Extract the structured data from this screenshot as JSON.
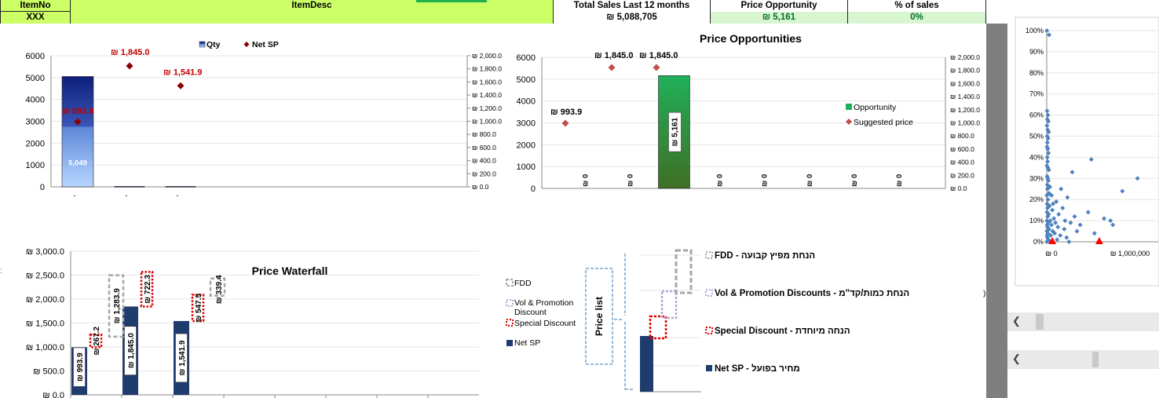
{
  "header": {
    "item_no_label": "ItemNo",
    "item_no_value": "XXX",
    "item_desc_label": "ItemDesc",
    "total_sales_label": "Total Sales Last  12 months",
    "total_sales_value": "₪ 5,088,705",
    "price_opp_label": "Price Opportunity",
    "price_opp_value": "₪ 5,161",
    "pct_sales_label": "% of sales",
    "pct_sales_value": "0%"
  },
  "chart_data": [
    {
      "id": "qty_netsp",
      "type": "bar",
      "legend": [
        "Qty",
        "Net SP"
      ],
      "y_ticks": [
        "6000",
        "5000",
        "4000",
        "3000",
        "2000",
        "1000",
        "0"
      ],
      "y2_ticks": [
        "₪ 2,000.0",
        "₪ 1,800.0",
        "₪ 1,600.0",
        "₪ 1,400.0",
        "₪ 1,200.0",
        "₪ 1,000.0",
        "₪ 800.0",
        "₪ 600.0",
        "₪ 400.0",
        "₪ 200.0",
        "₪ 0.0"
      ],
      "ylim": [
        0,
        6000
      ],
      "y2lim": [
        0,
        2000
      ],
      "qty": [
        5049,
        20,
        20
      ],
      "net_sp": [
        993.9,
        1845.0,
        1541.9
      ],
      "bar_label": "5,049",
      "point_labels": [
        "₪ 993.9",
        "₪ 1,845.0",
        "₪ 1,541.9"
      ]
    },
    {
      "id": "price_opportunities",
      "type": "bar",
      "title": "Price Opportunities",
      "legend": [
        "Opportunity",
        "Suggested price"
      ],
      "y_ticks": [
        "6000",
        "5000",
        "4000",
        "3000",
        "2000",
        "1000",
        "0"
      ],
      "y2_ticks": [
        "₪ 2,000.0",
        "₪ 1,800.0",
        "₪ 1,600.0",
        "₪ 1,400.0",
        "₪ 1,200.0",
        "₪ 1,000.0",
        "₪ 800.0",
        "₪ 600.0",
        "₪ 400.0",
        "₪ 200.0",
        "₪ 0.0"
      ],
      "ylim": [
        0,
        6000
      ],
      "y2lim": [
        0,
        2000
      ],
      "opportunity": [
        0,
        0,
        5161,
        0,
        0,
        0,
        0,
        0
      ],
      "opportunity_labels": [
        "₪ 0",
        "₪ 0",
        "₪ 5,161",
        "₪ 0",
        "₪ 0",
        "₪ 0",
        "₪ 0",
        "₪ 0"
      ],
      "suggested_price": [
        993.9,
        1845.0,
        1845.0
      ],
      "suggested_labels": [
        "₪ 993.9",
        "₪ 1,845.0",
        "₪ 1,845.0"
      ]
    },
    {
      "id": "price_waterfall",
      "type": "bar",
      "title": "Price Waterfall",
      "y_ticks": [
        "₪ 3,000.0",
        "₪ 2,500.0",
        "₪ 2,000.0",
        "₪ 1,500.0",
        "₪ 1,000.0",
        "₪ 500.0",
        "₪ 0.0"
      ],
      "ylim": [
        0,
        3000
      ],
      "legend": [
        "FDD",
        "Vol & Promotion Discount",
        "Special Discount",
        "Net SP"
      ],
      "net_sp": [
        993.9,
        1845.0,
        1541.9
      ],
      "net_sp_labels": [
        "₪ 993.9",
        "₪ 1,845.0",
        "₪ 1,541.9"
      ],
      "special_discount": [
        267.2,
        722.3,
        547.5
      ],
      "special_labels": [
        "₪ 267.2",
        "₪ 722.3",
        "₪ 547.5"
      ],
      "fdd": [
        1283.9,
        339.4
      ],
      "fdd_labels": [
        "₪ 1,283.9",
        "₪ 339.4"
      ]
    },
    {
      "id": "scatter",
      "type": "scatter",
      "y_ticks": [
        "100%",
        "90%",
        "80%",
        "70%",
        "60%",
        "50%",
        "40%",
        "30%",
        "20%",
        "10%",
        "0%"
      ],
      "x_ticks": [
        "₪ 0",
        "₪ 1,000,000"
      ],
      "xlim": [
        0,
        1400000
      ],
      "ylim": [
        0,
        1
      ],
      "points": [
        [
          2000,
          1.0
        ],
        [
          30000,
          0.98
        ],
        [
          5000,
          0.62
        ],
        [
          15000,
          0.6
        ],
        [
          8000,
          0.58
        ],
        [
          20000,
          0.57
        ],
        [
          3000,
          0.55
        ],
        [
          12000,
          0.53
        ],
        [
          25000,
          0.52
        ],
        [
          6000,
          0.5
        ],
        [
          18000,
          0.49
        ],
        [
          9000,
          0.47
        ],
        [
          4000,
          0.45
        ],
        [
          14000,
          0.44
        ],
        [
          22000,
          0.42
        ],
        [
          7000,
          0.4
        ],
        [
          560000,
          0.39
        ],
        [
          11000,
          0.38
        ],
        [
          3000,
          0.36
        ],
        [
          16000,
          0.35
        ],
        [
          27000,
          0.34
        ],
        [
          320000,
          0.33
        ],
        [
          5000,
          0.31
        ],
        [
          13000,
          0.3
        ],
        [
          1140000,
          0.3
        ],
        [
          21000,
          0.29
        ],
        [
          8000,
          0.27
        ],
        [
          40000,
          0.26
        ],
        [
          180000,
          0.25
        ],
        [
          9000,
          0.25
        ],
        [
          950000,
          0.24
        ],
        [
          30000,
          0.23
        ],
        [
          2000,
          0.22
        ],
        [
          60000,
          0.22
        ],
        [
          260000,
          0.21
        ],
        [
          15000,
          0.2
        ],
        [
          120000,
          0.19
        ],
        [
          5000,
          0.18
        ],
        [
          80000,
          0.18
        ],
        [
          35000,
          0.17
        ],
        [
          10000,
          0.16
        ],
        [
          200000,
          0.16
        ],
        [
          70000,
          0.15
        ],
        [
          4000,
          0.14
        ],
        [
          520000,
          0.14
        ],
        [
          25000,
          0.13
        ],
        [
          150000,
          0.13
        ],
        [
          350000,
          0.12
        ],
        [
          12000,
          0.12
        ],
        [
          90000,
          0.11
        ],
        [
          720000,
          0.11
        ],
        [
          3000,
          0.1
        ],
        [
          45000,
          0.1
        ],
        [
          230000,
          0.1
        ],
        [
          800000,
          0.1
        ],
        [
          18000,
          0.09
        ],
        [
          110000,
          0.09
        ],
        [
          300000,
          0.09
        ],
        [
          6000,
          0.08
        ],
        [
          60000,
          0.08
        ],
        [
          420000,
          0.08
        ],
        [
          830000,
          0.08
        ],
        [
          9000,
          0.07
        ],
        [
          140000,
          0.07
        ],
        [
          220000,
          0.06
        ],
        [
          30000,
          0.06
        ],
        [
          2000,
          0.05
        ],
        [
          75000,
          0.05
        ],
        [
          380000,
          0.05
        ],
        [
          15000,
          0.04
        ],
        [
          100000,
          0.04
        ],
        [
          600000,
          0.04
        ],
        [
          4000,
          0.03
        ],
        [
          50000,
          0.03
        ],
        [
          170000,
          0.03
        ],
        [
          8000,
          0.02
        ],
        [
          250000,
          0.02
        ],
        [
          20000,
          0.01
        ],
        [
          130000,
          0.01
        ],
        [
          1000,
          0.0
        ],
        [
          40000,
          0.0
        ],
        [
          280000,
          0.0
        ]
      ],
      "highlight_points": [
        [
          70000,
          0.0
        ],
        [
          660000,
          0.0
        ]
      ]
    }
  ],
  "legend_diagram": {
    "fdd": "FDD  - הנחת מפיץ קבועה",
    "vol": "Vol & Promotion Discounts - הנחת כמות/קד\"מ",
    "special": "Special Discount  - הנחה מיוחדת",
    "netsp": "Net SP  - מחיר בפועל",
    "price_list": "Price list"
  },
  "colors": {
    "header_green": "#ccff66",
    "header_light": "#d7f5d0",
    "navy": "#1f3c6e",
    "opportunity_green": "#1fb05a",
    "point_red": "#c0504d",
    "scatter_blue": "#4f81bd",
    "highlight_red": "#ff0000"
  }
}
